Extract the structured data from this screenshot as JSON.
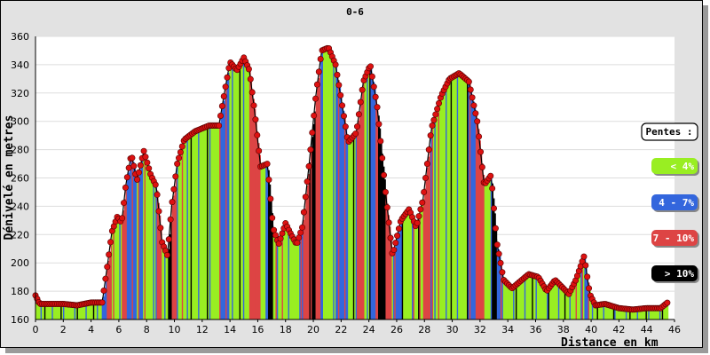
{
  "chart_data": {
    "type": "area",
    "title": "0-6",
    "xlabel": "Distance en km",
    "ylabel": "Dénivelé en metres",
    "xlim": [
      0,
      46
    ],
    "ylim": [
      160,
      360
    ],
    "x_ticks": [
      0,
      2,
      4,
      6,
      8,
      10,
      12,
      14,
      16,
      18,
      20,
      22,
      24,
      26,
      28,
      30,
      32,
      34,
      36,
      38,
      40,
      42,
      44,
      46
    ],
    "y_ticks": [
      160,
      180,
      200,
      220,
      240,
      260,
      280,
      300,
      320,
      340,
      360
    ],
    "grid": true,
    "legend_title": "Pentes :",
    "legend_position": "right",
    "slope_classes": [
      {
        "label": "< 4%",
        "color": "#99ee22"
      },
      {
        "label": "4 - 7%",
        "color": "#3366dd"
      },
      {
        "label": "7 - 10%",
        "color": "#dd4444"
      },
      {
        "label": "> 10%",
        "color": "#000000"
      }
    ],
    "marker_color": "#dd1111",
    "profile": [
      [
        0,
        177
      ],
      [
        0.3,
        171
      ],
      [
        1,
        171
      ],
      [
        2,
        171
      ],
      [
        3,
        170
      ],
      [
        4,
        172
      ],
      [
        4.8,
        172
      ],
      [
        5.2,
        200
      ],
      [
        5.5,
        222
      ],
      [
        5.9,
        233
      ],
      [
        6.2,
        228
      ],
      [
        6.5,
        255
      ],
      [
        6.9,
        277
      ],
      [
        7.3,
        258
      ],
      [
        7.8,
        279
      ],
      [
        8.3,
        262
      ],
      [
        8.7,
        254
      ],
      [
        9.1,
        215
      ],
      [
        9.5,
        205
      ],
      [
        9.8,
        240
      ],
      [
        10.2,
        270
      ],
      [
        10.7,
        287
      ],
      [
        11.5,
        293
      ],
      [
        12.5,
        297
      ],
      [
        13.2,
        297
      ],
      [
        13.6,
        320
      ],
      [
        14,
        342
      ],
      [
        14.5,
        336
      ],
      [
        15,
        345
      ],
      [
        15.4,
        336
      ],
      [
        15.8,
        305
      ],
      [
        16.2,
        268
      ],
      [
        16.7,
        270
      ],
      [
        17.1,
        225
      ],
      [
        17.5,
        213
      ],
      [
        18,
        228
      ],
      [
        18.4,
        220
      ],
      [
        18.8,
        213
      ],
      [
        19.2,
        225
      ],
      [
        19.7,
        270
      ],
      [
        20.2,
        320
      ],
      [
        20.6,
        350
      ],
      [
        21.1,
        352
      ],
      [
        21.6,
        340
      ],
      [
        22.1,
        310
      ],
      [
        22.5,
        285
      ],
      [
        23.1,
        292
      ],
      [
        23.6,
        328
      ],
      [
        24.1,
        340
      ],
      [
        24.6,
        310
      ],
      [
        25.2,
        250
      ],
      [
        25.7,
        205
      ],
      [
        26.3,
        230
      ],
      [
        26.9,
        238
      ],
      [
        27.4,
        225
      ],
      [
        27.9,
        245
      ],
      [
        28.5,
        295
      ],
      [
        29.2,
        318
      ],
      [
        29.8,
        330
      ],
      [
        30.5,
        334
      ],
      [
        31.2,
        328
      ],
      [
        31.8,
        300
      ],
      [
        32.3,
        255
      ],
      [
        32.8,
        262
      ],
      [
        33.2,
        215
      ],
      [
        33.7,
        188
      ],
      [
        34.3,
        182
      ],
      [
        34.9,
        187
      ],
      [
        35.5,
        192
      ],
      [
        36.2,
        190
      ],
      [
        36.8,
        180
      ],
      [
        37.4,
        188
      ],
      [
        37.9,
        183
      ],
      [
        38.4,
        178
      ],
      [
        38.9,
        188
      ],
      [
        39.5,
        205
      ],
      [
        39.9,
        178
      ],
      [
        40.3,
        170
      ],
      [
        41,
        171
      ],
      [
        42,
        168
      ],
      [
        43,
        167
      ],
      [
        44,
        168
      ],
      [
        45,
        168
      ],
      [
        45.5,
        172
      ]
    ]
  }
}
